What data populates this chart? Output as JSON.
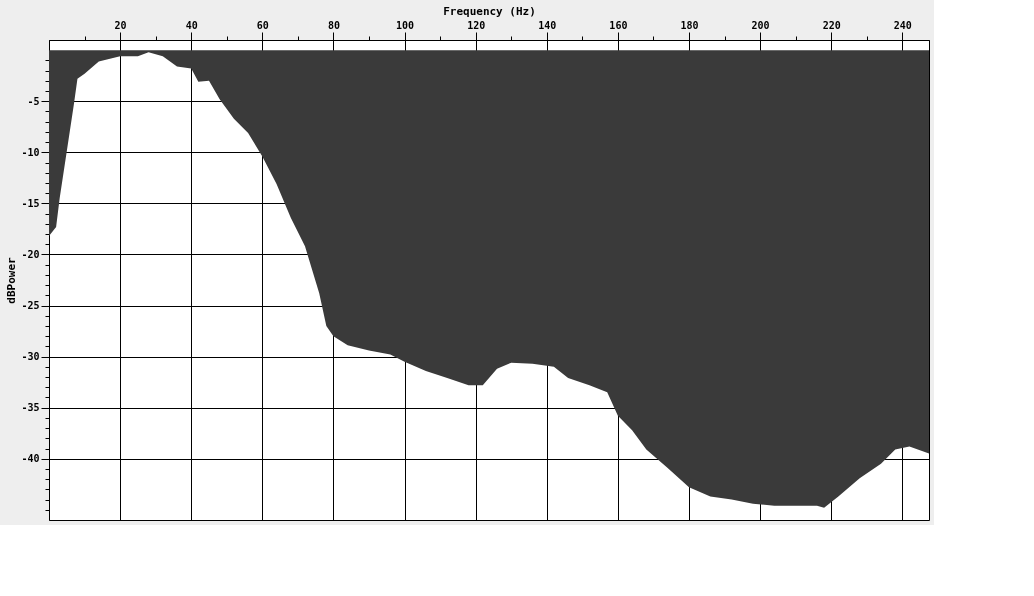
{
  "chart_data": {
    "type": "area",
    "xlabel": "Frequency (Hz)",
    "ylabel": "dBPower",
    "color": "#3a3a3a",
    "grid": true,
    "x": [
      0,
      2,
      3,
      5,
      7,
      8,
      10,
      14,
      20,
      25,
      28,
      32,
      36,
      40,
      42,
      45,
      48,
      52,
      56,
      60,
      64,
      68,
      72,
      76,
      78,
      80,
      84,
      90,
      96,
      100,
      106,
      112,
      118,
      122,
      126,
      130,
      136,
      142,
      146,
      152,
      157,
      160,
      164,
      168,
      174,
      180,
      186,
      192,
      198,
      204,
      210,
      216,
      218,
      222,
      228,
      234,
      238,
      242,
      247.5
    ],
    "values": [
      -18.2,
      -17.3,
      -14.5,
      -9.9,
      -5.3,
      -2.8,
      -2.3,
      -1.1,
      -0.6,
      -0.6,
      -0.2,
      -0.6,
      -1.6,
      -1.8,
      -3.1,
      -3.0,
      -4.8,
      -6.7,
      -8.1,
      -10.4,
      -13.1,
      -16.4,
      -19.2,
      -23.8,
      -27.0,
      -28.0,
      -28.9,
      -29.4,
      -29.8,
      -30.5,
      -31.4,
      -32.1,
      -32.8,
      -32.8,
      -31.2,
      -30.6,
      -30.7,
      -31.0,
      -32.1,
      -32.8,
      -33.5,
      -35.8,
      -37.2,
      -39.1,
      -40.9,
      -42.8,
      -43.7,
      -44.0,
      -44.4,
      -44.6,
      -44.6,
      -44.6,
      -44.8,
      -43.7,
      -41.9,
      -40.5,
      -39.1,
      -38.8,
      -39.5
    ],
    "xlim": [
      0,
      247.5
    ],
    "ylim": [
      -46,
      1
    ],
    "xticks": [
      {
        "value": 10,
        "label": null
      },
      20,
      {
        "value": 30,
        "label": null
      },
      40,
      {
        "value": 50,
        "label": null
      },
      60,
      {
        "value": 70,
        "label": null
      },
      80,
      {
        "value": 90,
        "label": null
      },
      100,
      {
        "value": 110,
        "label": null
      },
      120,
      {
        "value": 130,
        "label": null
      },
      140,
      {
        "value": 150,
        "label": null
      },
      160,
      {
        "value": 170,
        "label": null
      },
      180,
      {
        "value": 190,
        "label": null
      },
      200,
      {
        "value": 210,
        "label": null
      },
      220,
      {
        "value": 230,
        "label": null
      },
      240
    ],
    "yticks": [
      {
        "value": -1,
        "label": null
      },
      {
        "value": -2,
        "label": null
      },
      {
        "value": -3,
        "label": null
      },
      {
        "value": -4,
        "label": null
      },
      -5,
      {
        "value": -6,
        "label": null
      },
      {
        "value": -7,
        "label": null
      },
      {
        "value": -8,
        "label": null
      },
      {
        "value": -9,
        "label": null
      },
      -10,
      {
        "value": -11,
        "label": null
      },
      {
        "value": -12,
        "label": null
      },
      {
        "value": -13,
        "label": null
      },
      {
        "value": -14,
        "label": null
      },
      -15,
      {
        "value": -16,
        "label": null
      },
      {
        "value": -17,
        "label": null
      },
      {
        "value": -18,
        "label": null
      },
      {
        "value": -19,
        "label": null
      },
      -20,
      {
        "value": -21,
        "label": null
      },
      {
        "value": -22,
        "label": null
      },
      {
        "value": -23,
        "label": null
      },
      {
        "value": -24,
        "label": null
      },
      -25,
      {
        "value": -26,
        "label": null
      },
      {
        "value": -27,
        "label": null
      },
      {
        "value": -28,
        "label": null
      },
      {
        "value": -29,
        "label": null
      },
      -30,
      {
        "value": -31,
        "label": null
      },
      {
        "value": -32,
        "label": null
      },
      {
        "value": -33,
        "label": null
      },
      {
        "value": -34,
        "label": null
      },
      -35,
      {
        "value": -36,
        "label": null
      },
      {
        "value": -37,
        "label": null
      },
      {
        "value": -38,
        "label": null
      },
      {
        "value": -39,
        "label": null
      },
      -40,
      {
        "value": -41,
        "label": null
      },
      {
        "value": -42,
        "label": null
      },
      {
        "value": -43,
        "label": null
      },
      {
        "value": -44,
        "label": null
      },
      {
        "value": -45,
        "label": null
      }
    ]
  }
}
